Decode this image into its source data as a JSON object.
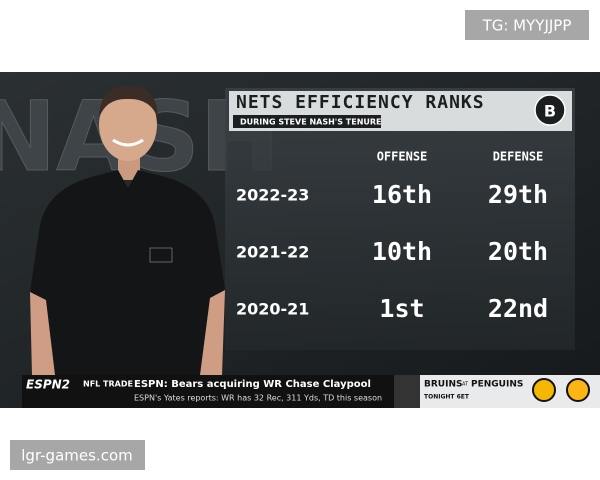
{
  "watermarks": {
    "top": "TG: MYYJJPP",
    "bottom": "lgr-games.com"
  },
  "background_text": "NASH",
  "graphic": {
    "title": "NETS EFFICIENCY RANKS",
    "subtitle": "DURING STEVE NASH'S TENURE",
    "columns": [
      "OFFENSE",
      "DEFENSE"
    ],
    "rows": [
      {
        "season": "2022-23",
        "cells": [
          "16th",
          "29th"
        ]
      },
      {
        "season": "2021-22",
        "cells": [
          "10th",
          "20th"
        ]
      },
      {
        "season": "2020-21",
        "cells": [
          "1st",
          "22nd"
        ]
      }
    ]
  },
  "ticker": {
    "network": "ESPN2",
    "label": "NFL TRADE",
    "headline": "ESPN: Bears acquiring WR Chase Claypool",
    "detail": "ESPN's Yates reports: WR has 32 Rec, 311 Yds, TD this season",
    "promo_away": "BRUINS",
    "promo_at": "AT",
    "promo_home": "PENGUINS",
    "promo_time": "TONIGHT 6ET"
  }
}
